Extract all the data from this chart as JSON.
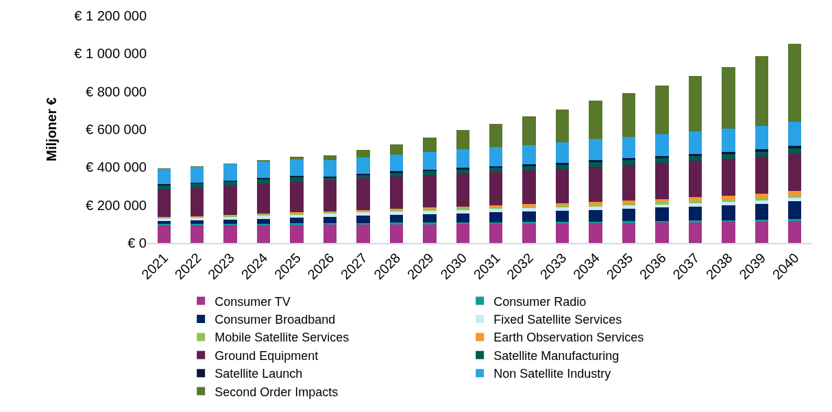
{
  "chart_data": {
    "type": "bar",
    "stacked": true,
    "ylabel": "Miljoner €",
    "categories": [
      "2021",
      "2022",
      "2023",
      "2024",
      "2025",
      "2026",
      "2027",
      "2028",
      "2029",
      "2030",
      "2031",
      "2032",
      "2033",
      "2034",
      "2035",
      "2036",
      "2037",
      "2038",
      "2039",
      "2040"
    ],
    "series": [
      {
        "name": "Consumer TV",
        "color": "#a5348a",
        "values": [
          93000,
          93000,
          94000,
          94000,
          95000,
          96000,
          97000,
          98000,
          99000,
          100000,
          101000,
          102000,
          103000,
          104000,
          106000,
          108000,
          109000,
          111000,
          113000,
          116000
        ]
      },
      {
        "name": "Consumer Radio",
        "color": "#0f9e8e",
        "values": [
          8000,
          8000,
          9000,
          9000,
          9000,
          9000,
          9000,
          9000,
          9000,
          9000,
          9000,
          9000,
          9000,
          9000,
          9000,
          9000,
          9000,
          9000,
          9000,
          9000
        ]
      },
      {
        "name": "Consumer Broadband",
        "color": "#002060",
        "values": [
          15000,
          17000,
          20000,
          25000,
          28000,
          32000,
          38000,
          42000,
          45000,
          48000,
          52000,
          55000,
          58000,
          62000,
          66000,
          70000,
          75000,
          80000,
          85000,
          95000
        ]
      },
      {
        "name": "Fixed Satellite Services",
        "color": "#cce8f8",
        "values": [
          15000,
          15000,
          16000,
          17000,
          17000,
          17000,
          17000,
          17000,
          17000,
          17000,
          17000,
          17000,
          17000,
          17000,
          17000,
          17000,
          17000,
          17000,
          17000,
          17000
        ]
      },
      {
        "name": "Mobile Satellite Services",
        "color": "#92c353",
        "values": [
          4000,
          5000,
          6000,
          7000,
          7000,
          7000,
          8000,
          8000,
          9000,
          9000,
          10000,
          10000,
          11000,
          11000,
          12000,
          12000,
          13000,
          14000,
          14000,
          15000
        ]
      },
      {
        "name": "Earth Observation Services",
        "color": "#f79433",
        "values": [
          3000,
          4000,
          4000,
          5000,
          5000,
          6000,
          6000,
          7000,
          8000,
          10000,
          11000,
          12000,
          13000,
          14000,
          15000,
          16000,
          18000,
          20000,
          22000,
          24000
        ]
      },
      {
        "name": "Ground Equipment",
        "color": "#621f4e",
        "values": [
          145000,
          147000,
          150000,
          155000,
          160000,
          165000,
          168000,
          170000,
          172000,
          175000,
          176000,
          178000,
          180000,
          183000,
          186000,
          190000,
          192000,
          194000,
          196000,
          195000
        ]
      },
      {
        "name": "Satellite Manufacturing",
        "color": "#005c50",
        "values": [
          22000,
          25000,
          25000,
          25000,
          25000,
          12000,
          15000,
          18000,
          20000,
          20000,
          20000,
          22000,
          22000,
          25000,
          25000,
          25000,
          25000,
          25000,
          25000,
          27000
        ]
      },
      {
        "name": "Satellite Launch",
        "color": "#0b1640",
        "values": [
          5000,
          5000,
          6000,
          7000,
          7000,
          8000,
          8000,
          9000,
          9000,
          9000,
          10000,
          10000,
          10000,
          11000,
          11000,
          12000,
          12000,
          12000,
          13000,
          14000
        ]
      },
      {
        "name": "Non Satellite Industry",
        "color": "#29a3e6",
        "values": [
          82000,
          84000,
          86000,
          87000,
          89000,
          84000,
          86000,
          87000,
          93000,
          100000,
          100000,
          103000,
          108000,
          112000,
          114000,
          115000,
          120000,
          120000,
          125000,
          127000
        ]
      },
      {
        "name": "Second Order Impacts",
        "color": "#58782c",
        "values": [
          3000,
          3000,
          5000,
          8000,
          15000,
          25000,
          38000,
          55000,
          75000,
          98000,
          122000,
          150000,
          175000,
          205000,
          232000,
          258000,
          292000,
          328000,
          368000,
          412000
        ]
      }
    ],
    "ylim": [
      0,
      1200000
    ],
    "yticks": [
      {
        "value": 0,
        "label": "€ 0"
      },
      {
        "value": 200000,
        "label": "€ 200 000"
      },
      {
        "value": 400000,
        "label": "€ 400 000"
      },
      {
        "value": 600000,
        "label": "€ 600 000"
      },
      {
        "value": 800000,
        "label": "€ 800 000"
      },
      {
        "value": 1000000,
        "label": "€ 1 000 000"
      },
      {
        "value": 1200000,
        "label": "€ 1 200 000"
      }
    ],
    "grid": false,
    "legend": "bottom"
  }
}
